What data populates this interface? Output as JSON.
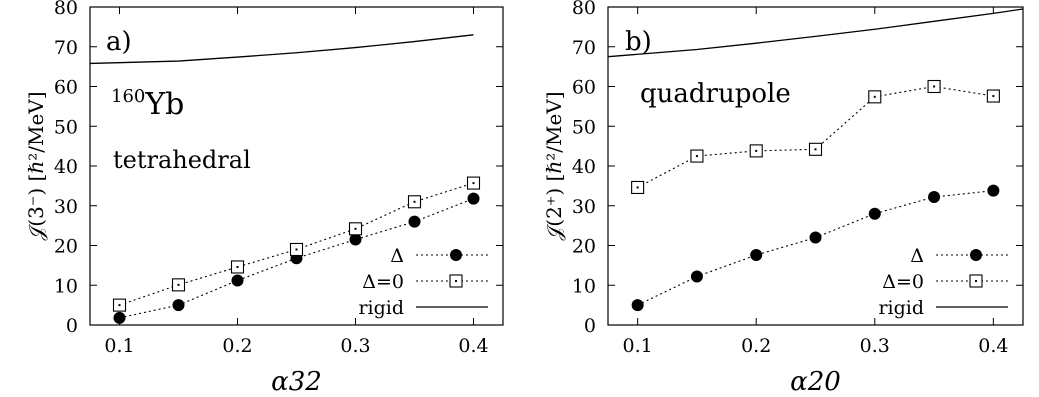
{
  "chart_data": [
    {
      "type": "line",
      "panel_label": "a)",
      "xlabel": "α32",
      "ylabel": "𝒥(3⁻) [ℏ²/MeV]",
      "xlim": [
        0.075,
        0.425
      ],
      "ylim": [
        0,
        80
      ],
      "xticks": [
        "0.1",
        "0.2",
        "0.3",
        "0.4"
      ],
      "yticks": [
        "0",
        "10",
        "20",
        "30",
        "40",
        "50",
        "60",
        "70",
        "80"
      ],
      "annotations": [
        "160Yb",
        "tetrahedral"
      ],
      "legend_position": "bottom-right",
      "x": [
        0.1,
        0.15,
        0.2,
        0.25,
        0.3,
        0.35,
        0.4
      ],
      "series": [
        {
          "name": "Δ",
          "marker": "filled-circle",
          "line": "dotted",
          "values": [
            1.8,
            5.0,
            11.2,
            16.8,
            21.5,
            26.0,
            31.8
          ]
        },
        {
          "name": "Δ=0",
          "marker": "open-square",
          "line": "dotted",
          "values": [
            5.0,
            10.1,
            14.6,
            19.0,
            24.2,
            31.0,
            35.7
          ]
        },
        {
          "name": "rigid",
          "marker": "none",
          "line": "solid",
          "curve_x": [
            0.075,
            0.15,
            0.2,
            0.25,
            0.3,
            0.35,
            0.4
          ],
          "curve_y": [
            65.8,
            66.4,
            67.4,
            68.5,
            69.8,
            71.3,
            73.0
          ]
        }
      ]
    },
    {
      "type": "line",
      "panel_label": "b)",
      "xlabel": "α20",
      "ylabel": "𝒥(2⁺) [ℏ²/MeV]",
      "xlim": [
        0.075,
        0.425
      ],
      "ylim": [
        0,
        80
      ],
      "xticks": [
        "0.1",
        "0.2",
        "0.3",
        "0.4"
      ],
      "yticks": [
        "0",
        "10",
        "20",
        "30",
        "40",
        "50",
        "60",
        "70",
        "80"
      ],
      "annotations": [
        "quadrupole"
      ],
      "legend_position": "bottom-right",
      "x": [
        0.1,
        0.15,
        0.2,
        0.25,
        0.3,
        0.35,
        0.4
      ],
      "series": [
        {
          "name": "Δ",
          "marker": "filled-circle",
          "line": "dotted",
          "values": [
            5.0,
            12.2,
            17.6,
            22.0,
            28.0,
            32.2,
            33.8
          ]
        },
        {
          "name": "Δ=0",
          "marker": "open-square",
          "line": "dotted",
          "values": [
            34.6,
            42.5,
            43.8,
            44.2,
            57.4,
            60.0,
            57.6
          ]
        },
        {
          "name": "rigid",
          "marker": "none",
          "line": "solid",
          "curve_x": [
            0.075,
            0.15,
            0.2,
            0.25,
            0.3,
            0.35,
            0.4,
            0.425
          ],
          "curve_y": [
            67.5,
            69.3,
            70.9,
            72.6,
            74.4,
            76.4,
            78.4,
            79.5
          ]
        }
      ]
    }
  ]
}
